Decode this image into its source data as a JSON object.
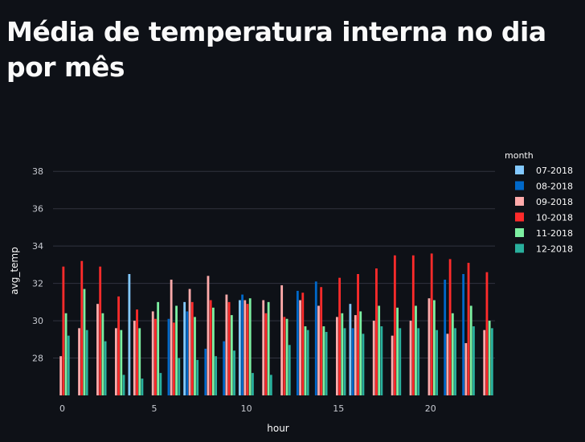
{
  "page": {
    "title": "Média de temperatura interna no dia por mês"
  },
  "chart_data": {
    "type": "bar",
    "xlabel": "hour",
    "ylabel": "avg_temp",
    "xlim": [
      -0.5,
      23.5
    ],
    "ylim": [
      26,
      39
    ],
    "x_ticks": [
      0,
      5,
      10,
      15,
      20
    ],
    "y_ticks": [
      28,
      30,
      32,
      34,
      36,
      38
    ],
    "grid": true,
    "barmode": "group",
    "legend": {
      "title": "month",
      "position": "right"
    },
    "x": [
      0,
      1,
      2,
      3,
      4,
      5,
      6,
      7,
      8,
      9,
      10,
      11,
      12,
      13,
      14,
      15,
      16,
      17,
      18,
      19,
      20,
      21,
      22,
      23
    ],
    "series": [
      {
        "name": "07-2018",
        "color": "#83c9ff",
        "values": [
          null,
          null,
          null,
          null,
          32.5,
          null,
          null,
          31.0,
          null,
          null,
          31.1,
          null,
          null,
          null,
          null,
          null,
          30.9,
          null,
          null,
          null,
          null,
          null,
          null,
          null
        ]
      },
      {
        "name": "08-2018",
        "color": "#0068c9",
        "values": [
          null,
          null,
          null,
          null,
          null,
          null,
          30.1,
          30.5,
          28.5,
          28.9,
          31.4,
          null,
          null,
          31.6,
          32.1,
          null,
          29.6,
          null,
          null,
          null,
          null,
          32.2,
          32.5,
          null
        ]
      },
      {
        "name": "09-2018",
        "color": "#ffabab",
        "values": [
          28.1,
          29.6,
          30.9,
          29.6,
          30.0,
          30.5,
          32.2,
          31.7,
          32.4,
          31.4,
          31.1,
          31.1,
          31.9,
          31.1,
          30.8,
          30.2,
          30.3,
          30.0,
          29.2,
          30.0,
          31.2,
          29.3,
          28.8,
          29.5
        ]
      },
      {
        "name": "10-2018",
        "color": "#ff2b2b",
        "values": [
          32.9,
          33.2,
          32.9,
          31.3,
          30.6,
          30.1,
          29.9,
          31.0,
          31.1,
          31.0,
          30.9,
          30.4,
          30.2,
          31.5,
          31.8,
          32.3,
          32.5,
          32.8,
          33.5,
          33.5,
          33.6,
          33.3,
          33.1,
          32.6
        ]
      },
      {
        "name": "11-2018",
        "color": "#7defa1",
        "values": [
          30.4,
          31.7,
          30.4,
          29.5,
          29.6,
          31.0,
          30.8,
          30.2,
          30.7,
          30.3,
          31.2,
          31.0,
          30.1,
          29.7,
          29.7,
          30.4,
          30.5,
          30.8,
          30.7,
          30.8,
          31.1,
          30.4,
          30.8,
          30.0
        ]
      },
      {
        "name": "12-2018",
        "color": "#29b09d",
        "values": [
          29.2,
          29.5,
          28.9,
          27.1,
          26.9,
          27.2,
          28.0,
          27.9,
          28.1,
          28.4,
          27.2,
          27.1,
          28.7,
          29.5,
          29.4,
          29.6,
          29.3,
          29.7,
          29.6,
          29.6,
          29.5,
          29.6,
          29.7,
          29.6
        ]
      }
    ]
  }
}
